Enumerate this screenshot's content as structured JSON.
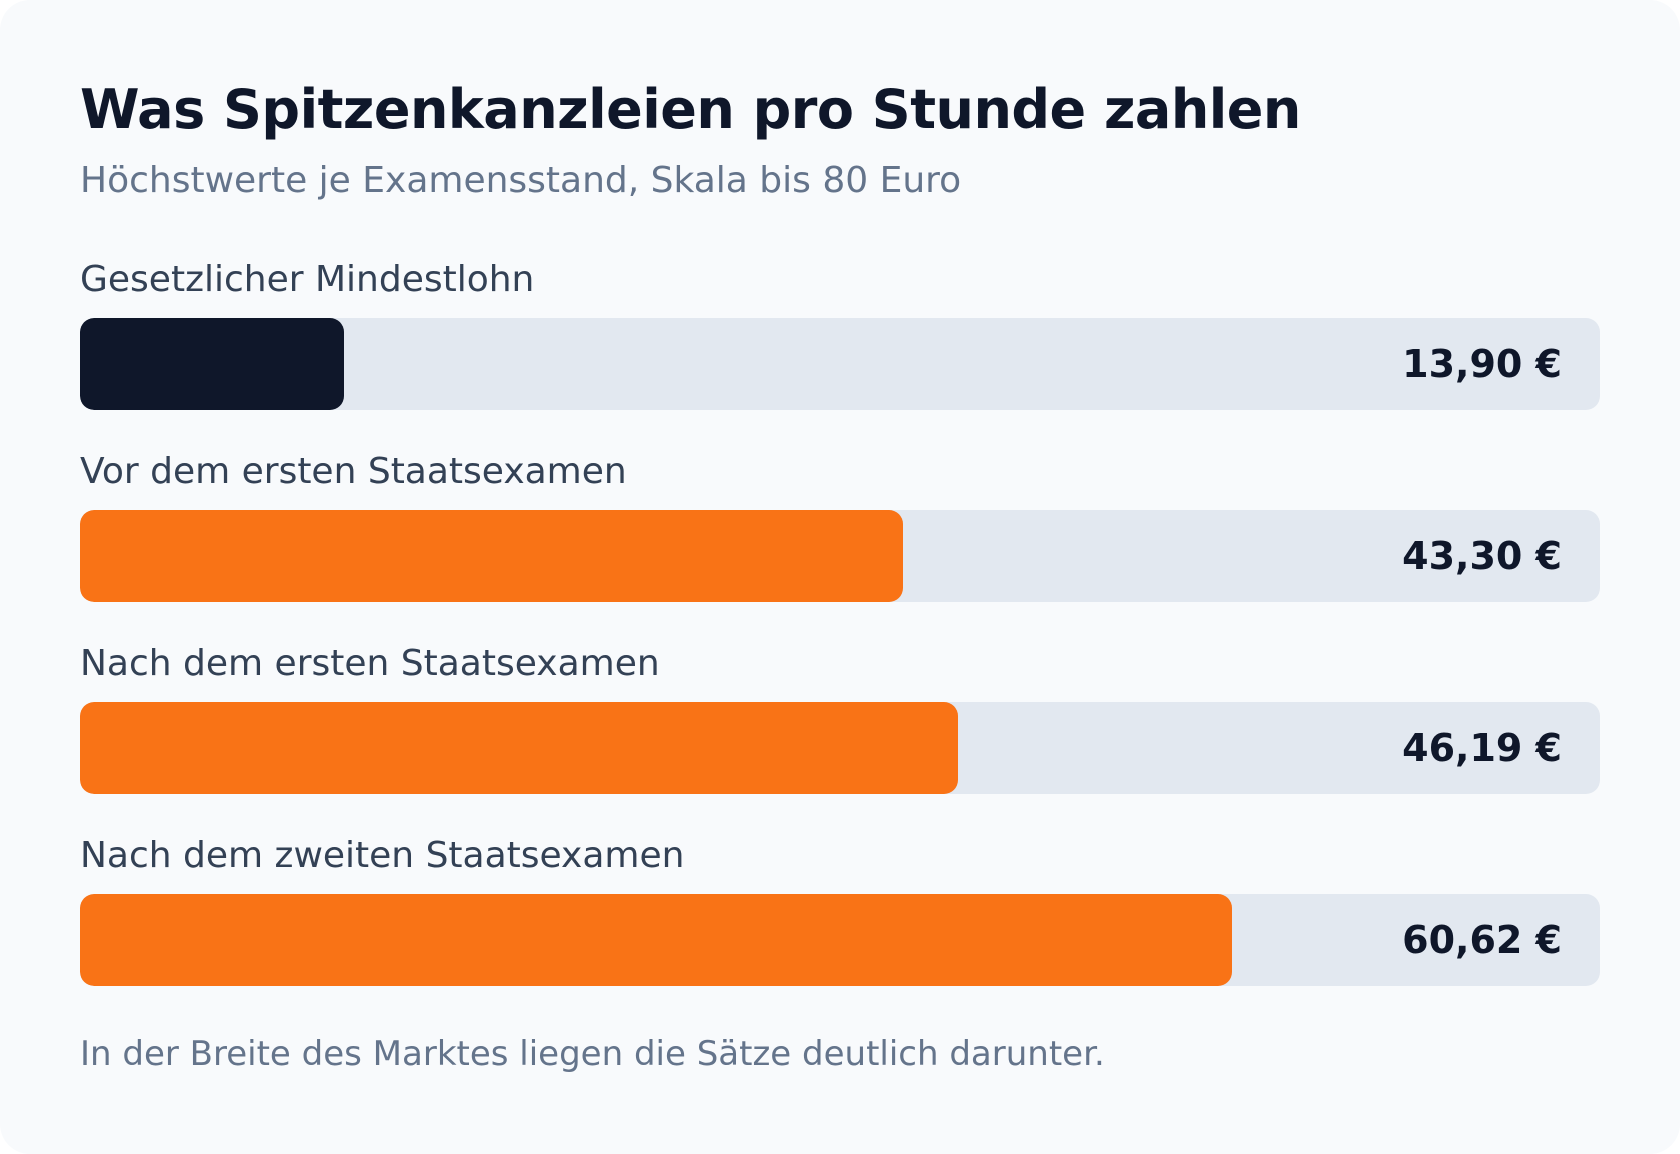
{
  "chart_data": {
    "type": "bar",
    "orientation": "horizontal",
    "title": "Was Spitzenkanzleien pro Stunde zahlen",
    "subtitle": "Höchstwerte je Examensstand, Skala bis 80 Euro",
    "xlim": [
      0,
      80
    ],
    "grid": false,
    "categories": [
      "Gesetzlicher Mindestlohn",
      "Vor dem ersten Staatsexamen",
      "Nach dem ersten Staatsexamen",
      "Nach dem zweiten Staatsexamen"
    ],
    "values": [
      13.9,
      43.3,
      46.19,
      60.62
    ],
    "value_labels": [
      "13,90 €",
      "43,30 €",
      "46,19 €",
      "60,62 €"
    ],
    "bar_colors": [
      "#0f172a",
      "#f97316",
      "#f97316",
      "#f97316"
    ],
    "track_color": "#e2e8f0",
    "footnote": "In der Breite des Marktes liegen die Sätze deutlich darunter."
  }
}
